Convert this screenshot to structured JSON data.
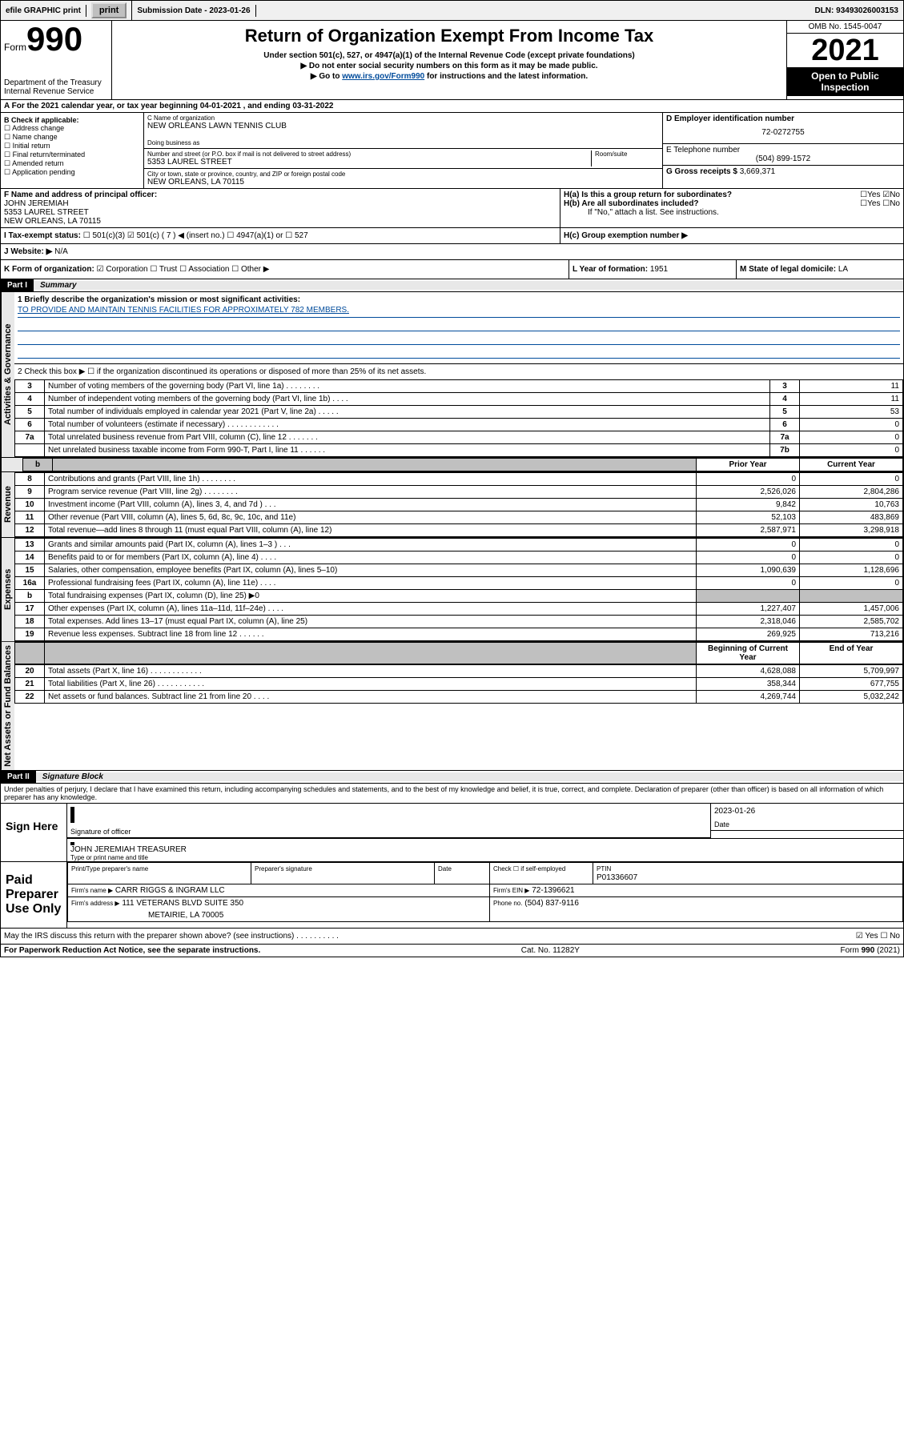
{
  "topbar": {
    "efile": "efile GRAPHIC print",
    "submission": "Submission Date - 2023-01-26",
    "dln": "DLN: 93493026003153"
  },
  "header": {
    "form_label": "Form",
    "form_no": "990",
    "title": "Return of Organization Exempt From Income Tax",
    "sub1": "Under section 501(c), 527, or 4947(a)(1) of the Internal Revenue Code (except private foundations)",
    "sub2": "▶ Do not enter social security numbers on this form as it may be made public.",
    "sub3_pre": "▶ Go to ",
    "sub3_link": "www.irs.gov/Form990",
    "sub3_post": " for instructions and the latest information.",
    "dept": "Department of the Treasury",
    "irs": "Internal Revenue Service",
    "omb": "OMB No. 1545-0047",
    "year": "2021",
    "open": "Open to Public Inspection"
  },
  "sectionA": {
    "text": "A For the 2021 calendar year, or tax year beginning 04-01-2021   , and ending 03-31-2022"
  },
  "sectionB": {
    "heading": "B Check if applicable:",
    "items": [
      "Address change",
      "Name change",
      "Initial return",
      "Final return/terminated",
      "Amended return",
      "Application pending"
    ]
  },
  "sectionC": {
    "name_label": "C Name of organization",
    "name": "NEW ORLEANS LAWN TENNIS CLUB",
    "dba_label": "Doing business as",
    "dba": "",
    "street_label": "Number and street (or P.O. box if mail is not delivered to street address)",
    "room_label": "Room/suite",
    "street": "5353 LAUREL STREET",
    "city_label": "City or town, state or province, country, and ZIP or foreign postal code",
    "city": "NEW ORLEANS, LA  70115"
  },
  "sectionD": {
    "label": "D Employer identification number",
    "ein": "72-0272755"
  },
  "sectionE": {
    "label": "E Telephone number",
    "phone": "(504) 899-1572"
  },
  "sectionG": {
    "label": "G Gross receipts $",
    "amount": "3,669,371"
  },
  "sectionF": {
    "label": "F Name and address of principal officer:",
    "name": "JOHN JEREMIAH",
    "street": "5353 LAUREL STREET",
    "city": "NEW ORLEANS, LA  70115"
  },
  "sectionH": {
    "a": "H(a)  Is this a group return for subordinates?",
    "a_yes": "Yes",
    "a_no": "No",
    "b": "H(b)  Are all subordinates included?",
    "b_yes": "Yes",
    "b_no": "No",
    "b_note": "If \"No,\" attach a list. See instructions.",
    "c": "H(c)  Group exemption number ▶"
  },
  "sectionI": {
    "label": "I   Tax-exempt status:",
    "opt1": "501(c)(3)",
    "opt2": "501(c) ( 7 ) ◀ (insert no.)",
    "opt3": "4947(a)(1) or",
    "opt4": "527"
  },
  "sectionJ": {
    "label": "J   Website: ▶",
    "val": "N/A"
  },
  "sectionK": {
    "label": "K Form of organization:",
    "opts": [
      "Corporation",
      "Trust",
      "Association",
      "Other ▶"
    ]
  },
  "sectionL": {
    "label": "L Year of formation:",
    "val": "1951"
  },
  "sectionM": {
    "label": "M State of legal domicile:",
    "val": "LA"
  },
  "part1": {
    "header": "Part I",
    "title": "Summary",
    "line1_label": "1   Briefly describe the organization's mission or most significant activities:",
    "mission": "TO PROVIDE AND MAINTAIN TENNIS FACILITIES FOR APPROXIMATELY 782 MEMBERS.",
    "line2": "2   Check this box ▶ ☐  if the organization discontinued its operations or disposed of more than 25% of its net assets.",
    "governance_rows": [
      {
        "n": "3",
        "label": "Number of voting members of the governing body (Part VI, line 1a)  .   .   .   .   .   .   .   .",
        "box": "3",
        "val": "11"
      },
      {
        "n": "4",
        "label": "Number of independent voting members of the governing body (Part VI, line 1b)  .   .   .   .",
        "box": "4",
        "val": "11"
      },
      {
        "n": "5",
        "label": "Total number of individuals employed in calendar year 2021 (Part V, line 2a)  .   .   .   .   .",
        "box": "5",
        "val": "53"
      },
      {
        "n": "6",
        "label": "Total number of volunteers (estimate if necessary)  .   .   .   .   .   .   .   .   .   .   .   .",
        "box": "6",
        "val": "0"
      },
      {
        "n": "7a",
        "label": "Total unrelated business revenue from Part VIII, column (C), line 12  .   .   .   .   .   .   .",
        "box": "7a",
        "val": "0"
      },
      {
        "n": "",
        "label": "Net unrelated business taxable income from Form 990-T, Part I, line 11  .   .   .   .   .   .",
        "box": "7b",
        "val": "0"
      }
    ],
    "col_headers": {
      "prior": "Prior Year",
      "current": "Current Year"
    },
    "revenue_rows": [
      {
        "n": "8",
        "label": "Contributions and grants (Part VIII, line 1h)  .   .   .   .   .   .   .   .",
        "prior": "0",
        "curr": "0"
      },
      {
        "n": "9",
        "label": "Program service revenue (Part VIII, line 2g)  .   .   .   .   .   .   .   .",
        "prior": "2,526,026",
        "curr": "2,804,286"
      },
      {
        "n": "10",
        "label": "Investment income (Part VIII, column (A), lines 3, 4, and 7d )  .   .   .",
        "prior": "9,842",
        "curr": "10,763"
      },
      {
        "n": "11",
        "label": "Other revenue (Part VIII, column (A), lines 5, 6d, 8c, 9c, 10c, and 11e)",
        "prior": "52,103",
        "curr": "483,869"
      },
      {
        "n": "12",
        "label": "Total revenue—add lines 8 through 11 (must equal Part VIII, column (A), line 12)",
        "prior": "2,587,971",
        "curr": "3,298,918"
      }
    ],
    "expense_rows": [
      {
        "n": "13",
        "label": "Grants and similar amounts paid (Part IX, column (A), lines 1–3 )  .   .   .",
        "prior": "0",
        "curr": "0"
      },
      {
        "n": "14",
        "label": "Benefits paid to or for members (Part IX, column (A), line 4)  .   .   .   .",
        "prior": "0",
        "curr": "0"
      },
      {
        "n": "15",
        "label": "Salaries, other compensation, employee benefits (Part IX, column (A), lines 5–10)",
        "prior": "1,090,639",
        "curr": "1,128,696"
      },
      {
        "n": "16a",
        "label": "Professional fundraising fees (Part IX, column (A), line 11e)  .   .   .   .",
        "prior": "0",
        "curr": "0"
      },
      {
        "n": "b",
        "label": "Total fundraising expenses (Part IX, column (D), line 25) ▶0",
        "prior": "shade",
        "curr": "shade"
      },
      {
        "n": "17",
        "label": "Other expenses (Part IX, column (A), lines 11a–11d, 11f–24e)  .   .   .   .",
        "prior": "1,227,407",
        "curr": "1,457,006"
      },
      {
        "n": "18",
        "label": "Total expenses. Add lines 13–17 (must equal Part IX, column (A), line 25)",
        "prior": "2,318,046",
        "curr": "2,585,702"
      },
      {
        "n": "19",
        "label": "Revenue less expenses. Subtract line 18 from line 12  .   .   .   .   .   .",
        "prior": "269,925",
        "curr": "713,216"
      }
    ],
    "net_headers": {
      "beg": "Beginning of Current Year",
      "end": "End of Year"
    },
    "net_rows": [
      {
        "n": "20",
        "label": "Total assets (Part X, line 16)  .   .   .   .   .   .   .   .   .   .   .   .",
        "prior": "4,628,088",
        "curr": "5,709,997"
      },
      {
        "n": "21",
        "label": "Total liabilities (Part X, line 26)  .   .   .   .   .   .   .   .   .   .   .",
        "prior": "358,344",
        "curr": "677,755"
      },
      {
        "n": "22",
        "label": "Net assets or fund balances. Subtract line 21 from line 20  .   .   .   .",
        "prior": "4,269,744",
        "curr": "5,032,242"
      }
    ],
    "vert_labels": {
      "gov": "Activities & Governance",
      "rev": "Revenue",
      "exp": "Expenses",
      "net": "Net Assets or Fund Balances"
    }
  },
  "part2": {
    "header": "Part II",
    "title": "Signature Block",
    "jurat": "Under penalties of perjury, I declare that I have examined this return, including accompanying schedules and statements, and to the best of my knowledge and belief, it is true, correct, and complete. Declaration of preparer (other than officer) is based on all information of which preparer has any knowledge.",
    "sign_here": "Sign Here",
    "sig_officer": "Signature of officer",
    "sig_date": "2023-01-26",
    "date_label": "Date",
    "officer": "JOHN JEREMIAH TREASURER",
    "officer_label": "Type or print name and title",
    "paid": "Paid Preparer Use Only",
    "prep_name_label": "Print/Type preparer's name",
    "prep_sig_label": "Preparer's signature",
    "check_if": "Check ☐ if self-employed",
    "ptin_label": "PTIN",
    "ptin": "P01336607",
    "firm_name_label": "Firm's name    ▶",
    "firm_name": "CARR RIGGS & INGRAM LLC",
    "firm_ein_label": "Firm's EIN ▶",
    "firm_ein": "72-1396621",
    "firm_addr_label": "Firm's address ▶",
    "firm_addr": "111 VETERANS BLVD SUITE 350",
    "firm_city": "METAIRIE, LA  70005",
    "phone_label": "Phone no.",
    "phone": "(504) 837-9116",
    "discuss": "May the IRS discuss this return with the preparer shown above? (see instructions)  .   .   .   .   .   .   .   .   .   .",
    "discuss_yes": "Yes",
    "discuss_no": "No"
  },
  "footer": {
    "left": "For Paperwork Reduction Act Notice, see the separate instructions.",
    "mid": "Cat. No. 11282Y",
    "right": "Form 990 (2021)"
  }
}
